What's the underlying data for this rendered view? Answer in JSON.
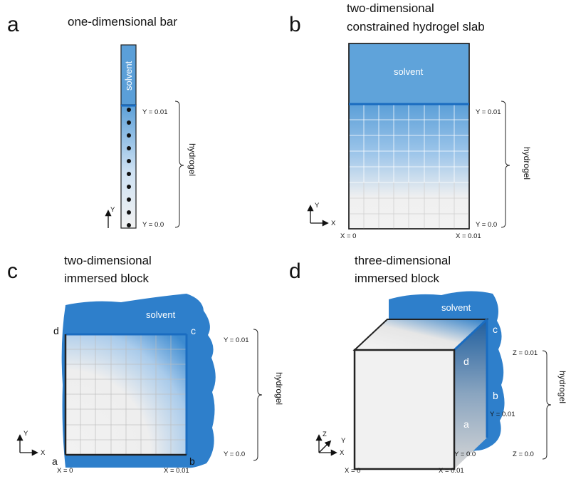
{
  "colors": {
    "solvent": "#2e7fcb",
    "solvent_light": "#5fa3da",
    "interface": "#1a6cc0",
    "outline": "#222222",
    "gel": "#efefef"
  },
  "panel_a": {
    "letter": "a",
    "title": "one-dimensional bar",
    "solvent_label": "solvent",
    "y_top": "Y = 0.01",
    "y_bottom": "Y = 0.0",
    "hydrogel_label": "hydrogel",
    "axis_y": "Y"
  },
  "panel_b": {
    "letter": "b",
    "title_line1": "two-dimensional",
    "title_line2": "constrained hydrogel slab",
    "solvent_label": "solvent",
    "y_top": "Y = 0.01",
    "y_bottom": "Y = 0.0",
    "x_left": "X = 0",
    "x_right": "X = 0.01",
    "hydrogel_label": "hydrogel",
    "axis_x": "X",
    "axis_y": "Y"
  },
  "panel_c": {
    "letter": "c",
    "title_line1": "two-dimensional",
    "title_line2": "immersed block",
    "solvent_label": "solvent",
    "corner_a": "a",
    "corner_b": "b",
    "corner_c": "c",
    "corner_d": "d",
    "y_top": "Y = 0.01",
    "y_bottom": "Y = 0.0",
    "x_left": "X = 0",
    "x_right": "X = 0.01",
    "hydrogel_label": "hydrogel",
    "axis_x": "X",
    "axis_y": "Y"
  },
  "panel_d": {
    "letter": "d",
    "title_line1": "three-dimensional",
    "title_line2": "immersed block",
    "solvent_label": "solvent",
    "corner_a": "a",
    "corner_b": "b",
    "corner_c": "c",
    "corner_d": "d",
    "z_top": "Z = 0.01",
    "z_bottom": "Z = 0.0",
    "y_top": "Y = 0.01",
    "y_bottom": "Y = 0.0",
    "x_left": "X = 0",
    "x_right": "X = 0.01",
    "hydrogel_label": "hydrogel",
    "axis_x": "X",
    "axis_y": "Y",
    "axis_z": "Z"
  }
}
